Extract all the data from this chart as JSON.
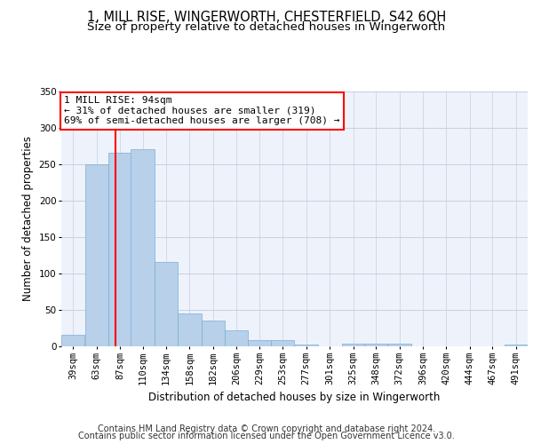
{
  "title1": "1, MILL RISE, WINGERWORTH, CHESTERFIELD, S42 6QH",
  "title2": "Size of property relative to detached houses in Wingerworth",
  "xlabel": "Distribution of detached houses by size in Wingerworth",
  "ylabel": "Number of detached properties",
  "footer1": "Contains HM Land Registry data © Crown copyright and database right 2024.",
  "footer2": "Contains public sector information licensed under the Open Government Licence v3.0.",
  "annotation_line1": "1 MILL RISE: 94sqm",
  "annotation_line2": "← 31% of detached houses are smaller (319)",
  "annotation_line3": "69% of semi-detached houses are larger (708) →",
  "bar_color": "#b8d0ea",
  "bar_edge_color": "#7aafd4",
  "red_line_x": 94,
  "bins": [
    39,
    63,
    87,
    110,
    134,
    158,
    182,
    206,
    229,
    253,
    277,
    301,
    325,
    348,
    372,
    396,
    420,
    444,
    467,
    491,
    515
  ],
  "bar_heights": [
    16,
    250,
    265,
    270,
    116,
    45,
    35,
    22,
    8,
    8,
    3,
    0,
    4,
    4,
    4,
    0,
    0,
    0,
    0,
    3
  ],
  "ylim": [
    0,
    350
  ],
  "yticks": [
    0,
    50,
    100,
    150,
    200,
    250,
    300,
    350
  ],
  "bg_color": "#eef2fb",
  "grid_color": "#c8cfe0",
  "title_fontsize": 10.5,
  "subtitle_fontsize": 9.5,
  "axis_label_fontsize": 8.5,
  "tick_fontsize": 7.5,
  "footer_fontsize": 7
}
